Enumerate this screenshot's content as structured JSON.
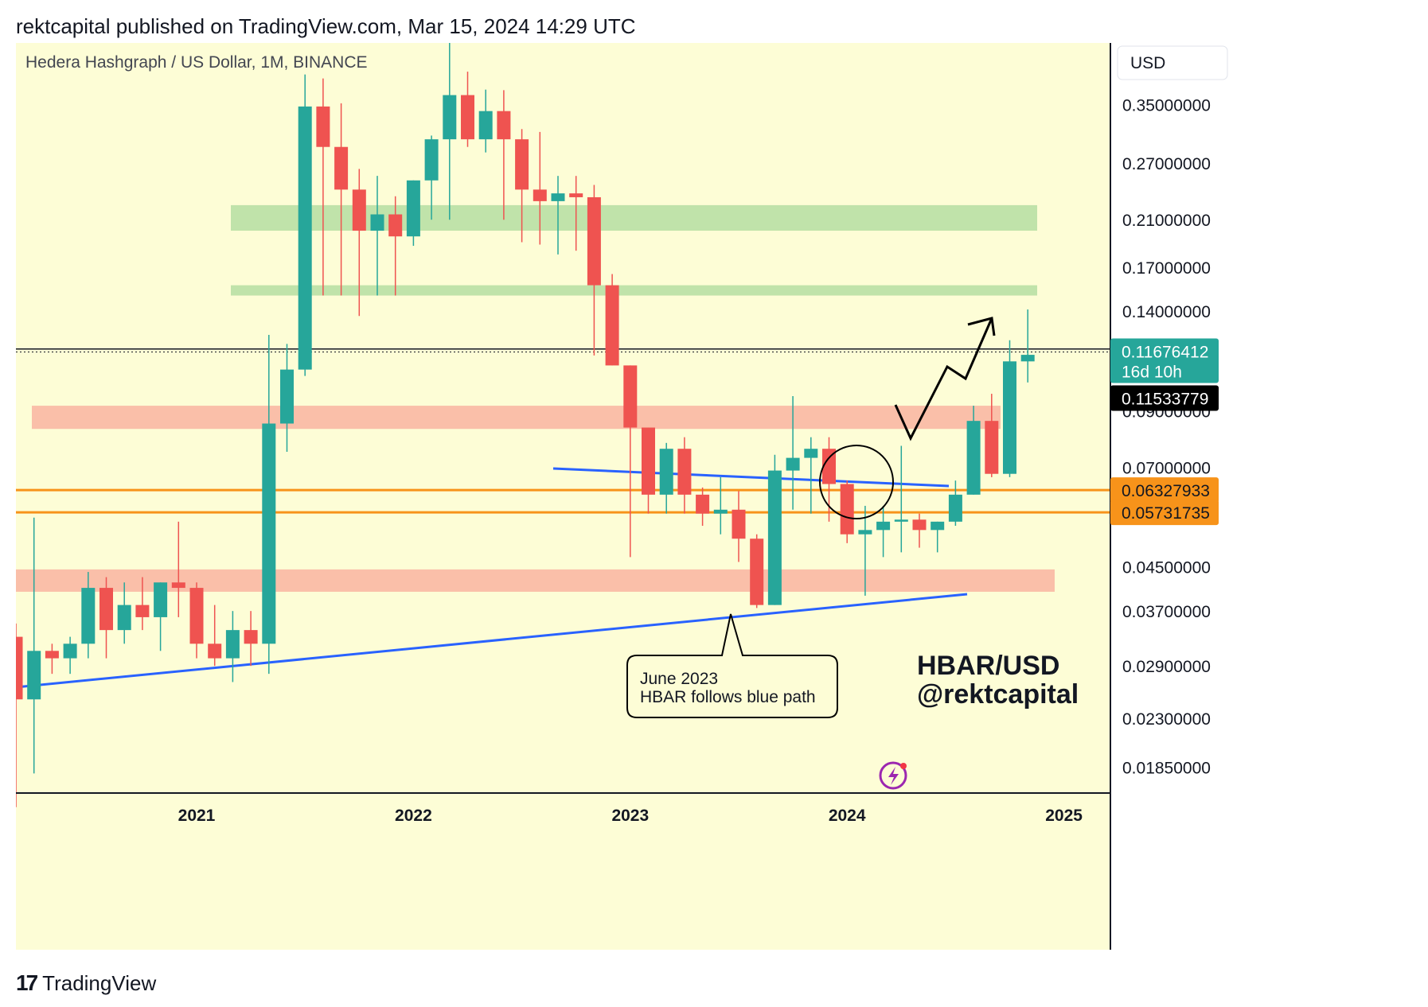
{
  "header": {
    "published": "rektcapital published on TradingView.com, Mar 15, 2024 14:29 UTC"
  },
  "footer": {
    "brand": "TradingView",
    "logo": "tradingview-logo-icon"
  },
  "chart_data": {
    "type": "candlestick",
    "title": "Hedera Hashgraph / US Dollar, 1M, BINANCE",
    "currency_button": "USD",
    "y_scale": "log",
    "ylim": [
      0.0165,
      0.46
    ],
    "y_ticks": [
      "0.35000000",
      "0.27000000",
      "0.21000000",
      "0.17000000",
      "0.14000000",
      "0.09000000",
      "0.07000000",
      "0.04500000",
      "0.03700000",
      "0.02900000",
      "0.02300000",
      "0.01850000"
    ],
    "x_ticks": [
      "2021",
      "2022",
      "2023",
      "2024",
      "2025"
    ],
    "grid": false,
    "background": "#fdfdd6",
    "colors": {
      "up": "#26a69a",
      "down": "#ef5350",
      "support_zone": "#f9b8a4",
      "resistance_zone": "#b9e0a5",
      "orange_line": "#f7931a",
      "blue_line": "#2962ff"
    },
    "candles": [
      [
        "2020-03",
        0.033,
        0.035,
        0.0155,
        0.025
      ],
      [
        "2020-04",
        0.025,
        0.056,
        0.018,
        0.031
      ],
      [
        "2020-05",
        0.031,
        0.032,
        0.028,
        0.03
      ],
      [
        "2020-06",
        0.03,
        0.033,
        0.028,
        0.032
      ],
      [
        "2020-07",
        0.032,
        0.044,
        0.03,
        0.041
      ],
      [
        "2020-08",
        0.041,
        0.043,
        0.03,
        0.034
      ],
      [
        "2020-09",
        0.034,
        0.042,
        0.032,
        0.038
      ],
      [
        "2020-10",
        0.038,
        0.043,
        0.034,
        0.036
      ],
      [
        "2020-11",
        0.036,
        0.042,
        0.031,
        0.042
      ],
      [
        "2020-12",
        0.042,
        0.055,
        0.036,
        0.041
      ],
      [
        "2021-01",
        0.041,
        0.042,
        0.03,
        0.032
      ],
      [
        "2021-02",
        0.032,
        0.038,
        0.029,
        0.03
      ],
      [
        "2021-03",
        0.03,
        0.037,
        0.027,
        0.034
      ],
      [
        "2021-04",
        0.034,
        0.037,
        0.029,
        0.032
      ],
      [
        "2021-05",
        0.032,
        0.126,
        0.028,
        0.085
      ],
      [
        "2021-06",
        0.085,
        0.121,
        0.075,
        0.108
      ],
      [
        "2021-07",
        0.108,
        0.4,
        0.105,
        0.347
      ],
      [
        "2021-08",
        0.347,
        0.393,
        0.15,
        0.29
      ],
      [
        "2021-09",
        0.29,
        0.352,
        0.15,
        0.24
      ],
      [
        "2021-10",
        0.24,
        0.263,
        0.137,
        0.2
      ],
      [
        "2021-11",
        0.2,
        0.255,
        0.15,
        0.215
      ],
      [
        "2021-12",
        0.215,
        0.233,
        0.15,
        0.195
      ],
      [
        "2022-01",
        0.195,
        0.25,
        0.187,
        0.25
      ],
      [
        "2022-02",
        0.25,
        0.305,
        0.21,
        0.3
      ],
      [
        "2022-03",
        0.3,
        0.46,
        0.21,
        0.365
      ],
      [
        "2022-04",
        0.365,
        0.405,
        0.29,
        0.3
      ],
      [
        "2022-05",
        0.3,
        0.374,
        0.283,
        0.34
      ],
      [
        "2022-06",
        0.34,
        0.373,
        0.21,
        0.3
      ],
      [
        "2022-07",
        0.3,
        0.314,
        0.19,
        0.24
      ],
      [
        "2022-08",
        0.24,
        0.31,
        0.188,
        0.228
      ],
      [
        "2022-09",
        0.228,
        0.255,
        0.18,
        0.236
      ],
      [
        "2022-10",
        0.236,
        0.255,
        0.183,
        0.232
      ],
      [
        "2022-11",
        0.232,
        0.245,
        0.115,
        0.157
      ],
      [
        "2022-12",
        0.157,
        0.165,
        0.11,
        0.11
      ],
      [
        "2023-01",
        0.11,
        0.11,
        0.047,
        0.0835
      ],
      [
        "2023-02",
        0.0835,
        0.0835,
        0.057,
        0.062
      ],
      [
        "2023-03",
        0.062,
        0.078,
        0.057,
        0.076
      ],
      [
        "2023-04",
        0.076,
        0.08,
        0.057,
        0.062
      ],
      [
        "2023-05",
        0.062,
        0.064,
        0.054,
        0.057
      ],
      [
        "2023-06",
        0.057,
        0.067,
        0.052,
        0.058
      ],
      [
        "2023-07",
        0.058,
        0.063,
        0.046,
        0.051
      ],
      [
        "2023-08",
        0.051,
        0.052,
        0.0375,
        0.038
      ],
      [
        "2023-09",
        0.038,
        0.074,
        0.038,
        0.069
      ],
      [
        "2023-10",
        0.069,
        0.096,
        0.058,
        0.073
      ],
      [
        "2023-11",
        0.073,
        0.08,
        0.057,
        0.076
      ],
      [
        "2023-12",
        0.076,
        0.08,
        0.055,
        0.065
      ],
      [
        "2024-01",
        0.065,
        0.066,
        0.05,
        0.052
      ],
      [
        "2024-02",
        0.052,
        0.059,
        0.0396,
        0.053
      ],
      [
        "2024-03",
        0.053,
        0.059,
        0.047,
        0.055
      ],
      [
        "2024-04",
        0.055,
        0.077,
        0.048,
        0.0555
      ],
      [
        "2024-05",
        0.0555,
        0.057,
        0.049,
        0.053
      ],
      [
        "2024-06",
        0.053,
        0.055,
        0.048,
        0.055
      ],
      [
        "2024-07",
        0.055,
        0.066,
        0.054,
        0.062
      ],
      [
        "2024-08",
        0.062,
        0.092,
        0.062,
        0.086
      ],
      [
        "2024-09",
        0.086,
        0.097,
        0.067,
        0.068
      ],
      [
        "2024-10",
        0.068,
        0.123,
        0.067,
        0.112
      ],
      [
        "2024-11",
        0.112,
        0.141,
        0.102,
        0.1153
      ]
    ],
    "resistance_zones": [
      [
        0.2,
        0.224
      ],
      [
        0.15,
        0.157
      ]
    ],
    "support_zones": [
      [
        0.083,
        0.092
      ],
      [
        0.0403,
        0.0445
      ]
    ],
    "orange_levels": [
      "0.06327933",
      "0.05731735"
    ],
    "price_labels": {
      "current": "0.11676412",
      "countdown": "16d 10h",
      "close": "0.11533779"
    },
    "annotation": {
      "line1": "June 2023",
      "line2": "HBAR follows blue path"
    },
    "watermark": {
      "line1": "HBAR/USD",
      "line2": "@rektcapital"
    }
  }
}
